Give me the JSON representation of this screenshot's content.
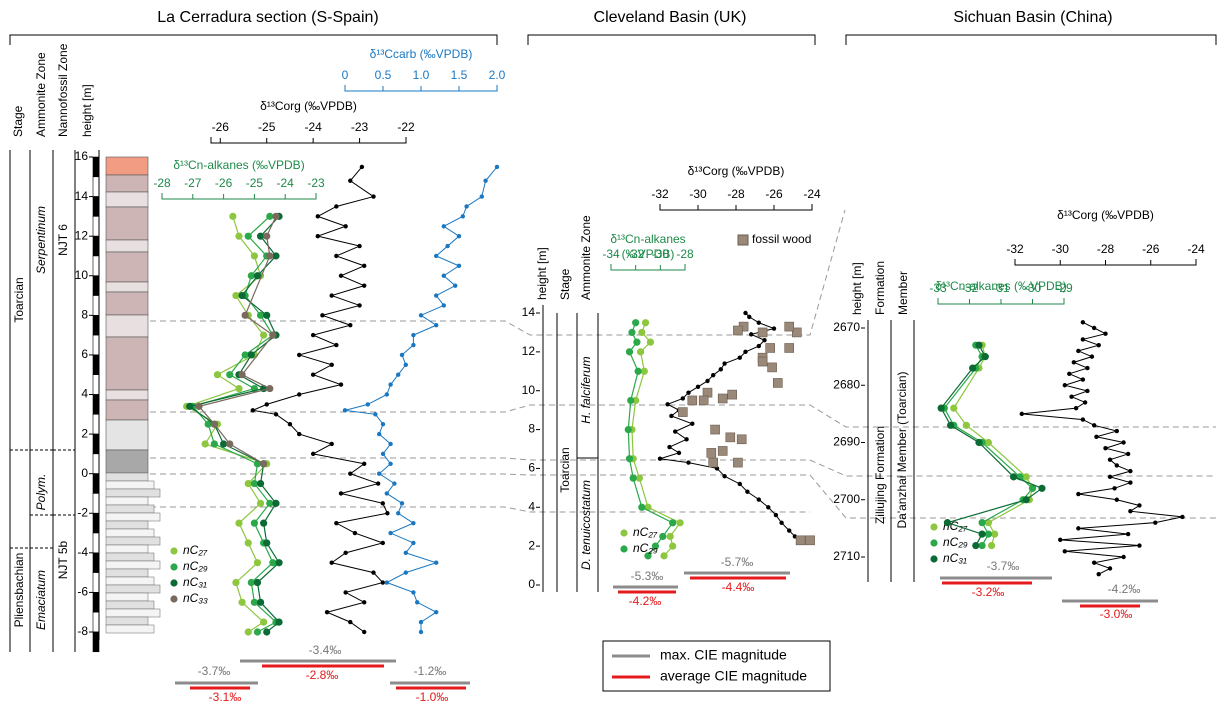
{
  "chart_data": [
    {
      "type": "profile",
      "title": "La Cerradura section (S-Spain)",
      "headers": [
        "Stage",
        "Ammonite Zone",
        "Nannofossil Zone",
        "height [m]"
      ],
      "column_labels": [
        "Toarcian",
        "Pliensbachian",
        "Serpentinum",
        "Emaciatum",
        "Polym.",
        "NJT 6",
        "NJT 5b"
      ],
      "ylim": [
        -8,
        16
      ],
      "yticks": [
        16,
        14,
        12,
        10,
        8,
        6,
        4,
        2,
        0,
        -2,
        -4,
        -6,
        -8
      ],
      "axes": [
        {
          "title": "δ¹³Ccarb (‰VPDB)",
          "color": "#1a78c2",
          "xlim": [
            0,
            2
          ],
          "xticks": [
            0,
            0.5,
            {
              "value": 1,
              "label": "1.0"
            },
            1.5,
            {
              "value": 2,
              "label": "2.0"
            }
          ]
        },
        {
          "title": "δ¹³Corg (‰VPDB)",
          "color": "#000000",
          "xlim": [
            -26.2,
            -22
          ],
          "xticks": [
            -26,
            -25,
            -24,
            -23,
            -22
          ]
        },
        {
          "title": "δ¹³Cn-alkanes (‰VPDB)",
          "color": "#1e8a4a",
          "xlim": [
            -28,
            -23
          ],
          "xticks": [
            -28,
            -27,
            -26,
            -25,
            -24,
            -23
          ]
        }
      ],
      "series": [
        {
          "axis": 1,
          "color": "#000000",
          "marker": "circle",
          "line": true,
          "height": [
            15.5,
            14.8,
            14,
            13.5,
            13,
            12.5,
            12,
            11.5,
            11,
            10.5,
            10,
            9.5,
            9,
            8.5,
            8,
            7.5,
            7,
            6.5,
            6,
            5.5,
            5,
            4.5,
            4,
            3.5,
            3.2,
            3,
            2.5,
            2,
            1.5,
            1,
            0.5,
            0,
            -0.5,
            -1,
            -1.5,
            -2,
            -2.5,
            -3,
            -3.5,
            -4,
            -4.5,
            -5,
            -5.5,
            -6,
            -6.5,
            -7,
            -7.5,
            -8
          ],
          "values": [
            -22.95,
            -23.2,
            -22.7,
            -23.5,
            -23.9,
            -23.3,
            -23.9,
            -23.0,
            -23.5,
            -22.9,
            -23.4,
            -22.9,
            -23.6,
            -23.0,
            -23.8,
            -23.2,
            -24.0,
            -23.5,
            -24.3,
            -23.6,
            -24.0,
            -23.4,
            -24.3,
            -25.0,
            -25.3,
            -24.8,
            -24.5,
            -24.3,
            -23.6,
            -24.0,
            -22.9,
            -23.2,
            -22.6,
            -23.4,
            -22.5,
            -22.4,
            -23.5,
            -23.1,
            -22.5,
            -23.3,
            -23.6,
            -22.7,
            -22.5,
            -23.3,
            -22.9,
            -23.7,
            -23.2,
            -22.9
          ]
        },
        {
          "axis": 0,
          "color": "#1a78c2",
          "marker": "circle",
          "line": true,
          "height": [
            15.5,
            14.8,
            14,
            13.5,
            13,
            12.5,
            12,
            11.5,
            11,
            10.5,
            10,
            9.5,
            9,
            8.5,
            8,
            7.5,
            7,
            6.5,
            6,
            5.5,
            5,
            4.5,
            4,
            3.5,
            3.2,
            3,
            2.5,
            2,
            1.5,
            1,
            0.5,
            0,
            -0.5,
            -1,
            -1.5,
            -2,
            -2.5,
            -3,
            -3.5,
            -4,
            -4.5,
            -5,
            -5.5,
            -6,
            -6.5,
            -7,
            -7.5,
            -8
          ],
          "values": [
            2.0,
            1.85,
            1.8,
            1.6,
            1.55,
            1.3,
            1.5,
            1.35,
            1.2,
            1.5,
            1.3,
            1.45,
            1.2,
            1.3,
            1.0,
            1.2,
            0.9,
            0.9,
            0.75,
            0.8,
            0.7,
            0.6,
            0.55,
            0.3,
            0.0,
            0.4,
            0.5,
            0.45,
            0.6,
            0.5,
            0.6,
            0.45,
            0.65,
            0.55,
            0.75,
            0.7,
            0.9,
            0.6,
            0.9,
            0.8,
            1.2,
            0.8,
            0.55,
            0.9,
            0.95,
            1.2,
            1.0,
            1.0
          ]
        },
        {
          "name": "nC₂₇",
          "axis": 2,
          "color": "#8dc63f",
          "marker": "dot",
          "line": true,
          "height": [
            13,
            12,
            11,
            10,
            9,
            8,
            7,
            6,
            5,
            4.3,
            3.4,
            2.5,
            1.5,
            0.5,
            -0.5,
            -1.5,
            -2.5,
            -3.5,
            -4.5,
            -5.5,
            -6.5,
            -7.5,
            -8
          ],
          "values": [
            -25.7,
            -25.5,
            -25.0,
            -24.8,
            -25.6,
            -25.2,
            -24.7,
            -25.0,
            -26.2,
            -25.5,
            -27.2,
            -26.2,
            -26.6,
            -24.6,
            -25.2,
            -24.8,
            -25.5,
            -25.2,
            -24.9,
            -25.6,
            -25.4,
            -24.7,
            -25.2
          ]
        },
        {
          "name": "nC₂₉",
          "axis": 2,
          "color": "#2aa84a",
          "marker": "dot",
          "line": true,
          "height": [
            13,
            12,
            11,
            10,
            9,
            8,
            7,
            6,
            5,
            4.3,
            3.4,
            2.5,
            1.5,
            0.5,
            -0.5,
            -1.5,
            -2.5,
            -3.5,
            -4.5,
            -5.5,
            -6.5,
            -7.5,
            -8
          ],
          "values": [
            -24.5,
            -25.2,
            -24.6,
            -25.1,
            -25.3,
            -24.8,
            -24.4,
            -25.3,
            -25.8,
            -25.0,
            -27.0,
            -26.5,
            -26.3,
            -24.9,
            -25.0,
            -24.5,
            -25.0,
            -24.7,
            -24.4,
            -25.1,
            -25.0,
            -24.3,
            -24.9
          ]
        },
        {
          "name": "nC₃₁",
          "axis": 2,
          "color": "#0b6b35",
          "marker": "dot",
          "line": true,
          "height": [
            13,
            12,
            11,
            10,
            9,
            8,
            7,
            6,
            5,
            4.3,
            3.4,
            2.5,
            1.5,
            0.5,
            -0.5,
            -1.5,
            -2.5,
            -3.5,
            -4.5,
            -5.5,
            -6.5,
            -7.5,
            -8
          ],
          "values": [
            -24.2,
            -24.8,
            -24.3,
            -24.9,
            -25.4,
            -24.6,
            -24.3,
            -25.1,
            -25.5,
            -24.7,
            -27.1,
            -26.3,
            -26.0,
            -24.7,
            -24.8,
            -24.3,
            -24.7,
            -24.6,
            -24.2,
            -24.9,
            -24.8,
            -24.2,
            -24.6
          ]
        },
        {
          "name": "nC₃₃",
          "axis": 2,
          "color": "#7a6a5e",
          "marker": "dot",
          "line": true,
          "height": [
            13,
            12,
            11,
            8,
            7,
            5,
            4.3,
            3.4,
            2.5,
            1.5,
            0.5
          ],
          "values": [
            -24.3,
            -24.6,
            -24.5,
            -25.3,
            -24.4,
            -25.4,
            -24.5,
            -26.8,
            -26.3,
            -25.8,
            -24.7
          ]
        }
      ],
      "cie": [
        {
          "max": "-3.7‰",
          "avg": "-3.1‰"
        },
        {
          "max": "-3.4‰",
          "avg": "-2.8‰"
        },
        {
          "max": "-1.2‰",
          "avg": "-1.0‰"
        }
      ]
    },
    {
      "type": "profile",
      "title": "Cleveland Basin (UK)",
      "headers": [
        "height [m]",
        "Stage",
        "Ammonite Zone"
      ],
      "column_labels": [
        "Toarcian",
        "H. falciferum",
        "D. tenuicostatum"
      ],
      "ylim": [
        0,
        14
      ],
      "yticks": [
        0,
        2,
        4,
        6,
        8,
        10,
        12,
        14
      ],
      "axes": [
        {
          "title": "δ¹³Corg (‰VPDB)",
          "color": "#000000",
          "xlim": [
            -32,
            -24
          ],
          "xticks": [
            -32,
            -30,
            -28,
            -26,
            -24
          ]
        },
        {
          "title": [
            "δ¹³Cn-alkanes",
            "(‰VPDB)"
          ],
          "color": "#1e8a4a",
          "xlim": [
            -34,
            -28
          ],
          "xticks": [
            -34,
            -32,
            -30,
            -28
          ]
        }
      ],
      "series": [
        {
          "axis": 0,
          "color": "#000000",
          "marker": "circle",
          "line": true,
          "height": [
            2.2,
            2.5,
            2.8,
            3.2,
            3.6,
            4.0,
            4.4,
            4.8,
            5.2,
            5.6,
            6.0,
            6.3,
            6.5,
            6.8,
            7.1,
            7.5,
            7.9,
            8.3,
            8.7,
            9.0,
            9.3,
            9.6,
            9.9,
            10.2,
            10.5,
            10.8,
            11.1,
            11.4,
            11.7,
            12.0,
            12.3,
            12.6,
            12.9,
            13.2,
            13.5,
            13.8,
            14.0
          ],
          "values": [
            -24.5,
            -24.9,
            -25.2,
            -25.6,
            -25.9,
            -26.3,
            -26.8,
            -27.4,
            -27.8,
            -28.6,
            -29.0,
            -30.5,
            -32.0,
            -31.0,
            -31.5,
            -30.6,
            -31.2,
            -30.3,
            -31.4,
            -31.0,
            -31.6,
            -30.8,
            -30.5,
            -30.0,
            -29.5,
            -29.2,
            -28.8,
            -28.6,
            -27.8,
            -27.5,
            -26.8,
            -26.5,
            -27.2,
            -26.0,
            -26.8,
            -27.3,
            -27.5
          ]
        },
        {
          "name": "fossil wood",
          "axis": 0,
          "color": "#9a8878",
          "marker": "square",
          "line": false,
          "height": [
            13.3,
            13.1,
            13.0,
            13.0,
            13.3,
            12.2,
            12.2,
            11.7,
            11.5,
            11.2,
            10.4,
            9.9,
            9.8,
            9.6,
            9.5,
            9.5,
            8.9,
            8.0,
            7.6,
            7.5,
            6.9,
            6.3,
            6.8,
            6.3,
            2.3,
            2.3
          ],
          "values": [
            -27.6,
            -27.9,
            -26.6,
            -24.8,
            -25.2,
            -26.2,
            -25.2,
            -26.6,
            -26.6,
            -26.1,
            -25.8,
            -29.5,
            -28.2,
            -28.7,
            -30.3,
            -29.7,
            -30.8,
            -29.1,
            -28.3,
            -27.7,
            -28.7,
            -29.2,
            -29.3,
            -27.9,
            -24.6,
            -24.1
          ]
        },
        {
          "name": "nC₂₇",
          "axis": 1,
          "color": "#8dc63f",
          "marker": "dot",
          "line": true,
          "height": [
            13.5,
            13,
            12.5,
            12,
            11,
            9.5,
            8,
            6.5,
            5.5,
            4,
            3.2,
            2.5,
            2,
            1.5
          ],
          "values": [
            -31.2,
            -31.5,
            -30.8,
            -31.6,
            -31.3,
            -32.0,
            -32.3,
            -32.2,
            -31.7,
            -31.0,
            -28.4,
            -29.2,
            -29.0,
            -29.7
          ]
        },
        {
          "name": "nC₂₉",
          "axis": 1,
          "color": "#2aa84a",
          "marker": "dot",
          "line": true,
          "height": [
            13.5,
            13,
            12.5,
            12,
            11,
            9.5,
            8,
            6.5,
            5.5,
            4,
            3.2,
            2.5,
            2,
            1.5
          ],
          "values": [
            -32.0,
            -32.3,
            -31.9,
            -32.5,
            -31.8,
            -32.4,
            -32.6,
            -32.5,
            -32.2,
            -31.5,
            -29.0,
            -29.8,
            -30.4,
            -31.0
          ]
        }
      ],
      "cie": [
        {
          "max": "-5.3‰",
          "avg": "-4.2‰"
        },
        {
          "max": "-5.7‰",
          "avg": "-4.4‰"
        }
      ]
    },
    {
      "type": "profile",
      "title": "Sichuan Basin (China)",
      "headers": [
        "height [m]",
        "Formation",
        "Member"
      ],
      "column_labels": [
        "Ziliujing Formation",
        "Da'anzhai Member (Toarcian)"
      ],
      "ylim": [
        2670,
        2710
      ],
      "yticks": [
        2670,
        2680,
        2690,
        2700,
        2710
      ],
      "axes": [
        {
          "title": "δ¹³Corg (‰VPDB)",
          "color": "#000000",
          "xlim": [
            -32,
            -24
          ],
          "xticks": [
            -32,
            -30,
            -28,
            -26,
            -24
          ]
        },
        {
          "title": "δ¹³Cn-alkanes (‰VPDB)",
          "color": "#1e8a4a",
          "xlim": [
            -33,
            -29
          ],
          "xticks": [
            -33,
            -32,
            -31,
            -30,
            -29
          ]
        }
      ],
      "series": [
        {
          "axis": 0,
          "color": "#000000",
          "marker": "circle",
          "line": true,
          "height": [
            2669,
            2670,
            2671,
            2672,
            2673,
            2674,
            2675,
            2676,
            2677,
            2678,
            2679,
            2680,
            2681,
            2682,
            2683,
            2684,
            2685,
            2686,
            2687,
            2688,
            2689,
            2690,
            2691,
            2692,
            2693,
            2694,
            2695,
            2696,
            2697,
            2698,
            2699,
            2700,
            2701,
            2702,
            2703,
            2704,
            2705,
            2706,
            2707,
            2708,
            2709,
            2710,
            2711,
            2712,
            2713
          ],
          "values": [
            -29.0,
            -28.5,
            -28.0,
            -29.0,
            -28.3,
            -29.2,
            -28.6,
            -29.4,
            -28.8,
            -29.6,
            -29.0,
            -29.8,
            -28.8,
            -29.5,
            -28.9,
            -29.3,
            -31.7,
            -29.0,
            -28.5,
            -27.5,
            -28.4,
            -27.2,
            -28.0,
            -27.0,
            -27.8,
            -27.5,
            -26.9,
            -27.8,
            -26.9,
            -27.6,
            -29.2,
            -27.5,
            -26.5,
            -26.9,
            -24.6,
            -25.8,
            -29.2,
            -27.0,
            -30.0,
            -26.5,
            -29.8,
            -27.2,
            -28.5,
            -27.8,
            -28.3
          ]
        },
        {
          "name": "nC₂₇",
          "axis": 1,
          "color": "#8dc63f",
          "marker": "dot",
          "line": true,
          "height": [
            2673,
            2675,
            2677,
            2684,
            2687,
            2690,
            2696,
            2698,
            2700,
            2704,
            2706,
            2708
          ],
          "values": [
            -31.6,
            -31.5,
            -31.7,
            -32.5,
            -32.1,
            -31.4,
            -30.2,
            -30.0,
            -30.1,
            -31.4,
            -31.2,
            -31.3
          ]
        },
        {
          "name": "nC₂₉",
          "axis": 1,
          "color": "#2aa84a",
          "marker": "dot",
          "line": true,
          "height": [
            2673,
            2675,
            2677,
            2684,
            2687,
            2690,
            2696,
            2698,
            2700,
            2704,
            2706,
            2708
          ],
          "values": [
            -31.8,
            -31.6,
            -31.8,
            -32.8,
            -32.5,
            -31.6,
            -30.4,
            -30.0,
            -30.3,
            -31.6,
            -31.4,
            -31.6
          ]
        },
        {
          "name": "nC₃₁",
          "axis": 1,
          "color": "#0b6b35",
          "marker": "dot",
          "line": true,
          "height": [
            2673,
            2675,
            2677,
            2684,
            2687,
            2690,
            2696,
            2698,
            2700,
            2704,
            2706,
            2708
          ],
          "values": [
            -31.7,
            -31.5,
            -31.9,
            -32.9,
            -32.6,
            -31.7,
            -30.6,
            -29.7,
            -30.2,
            -32.7,
            -31.6,
            -31.8
          ]
        }
      ],
      "cie": [
        {
          "max": "-3.7‰",
          "avg": "-3.2‰"
        },
        {
          "max": "-4.2‰",
          "avg": "-3.0‰"
        }
      ]
    }
  ],
  "cie_legend": [
    "max. CIE magnitude",
    "average CIE magnitude"
  ]
}
